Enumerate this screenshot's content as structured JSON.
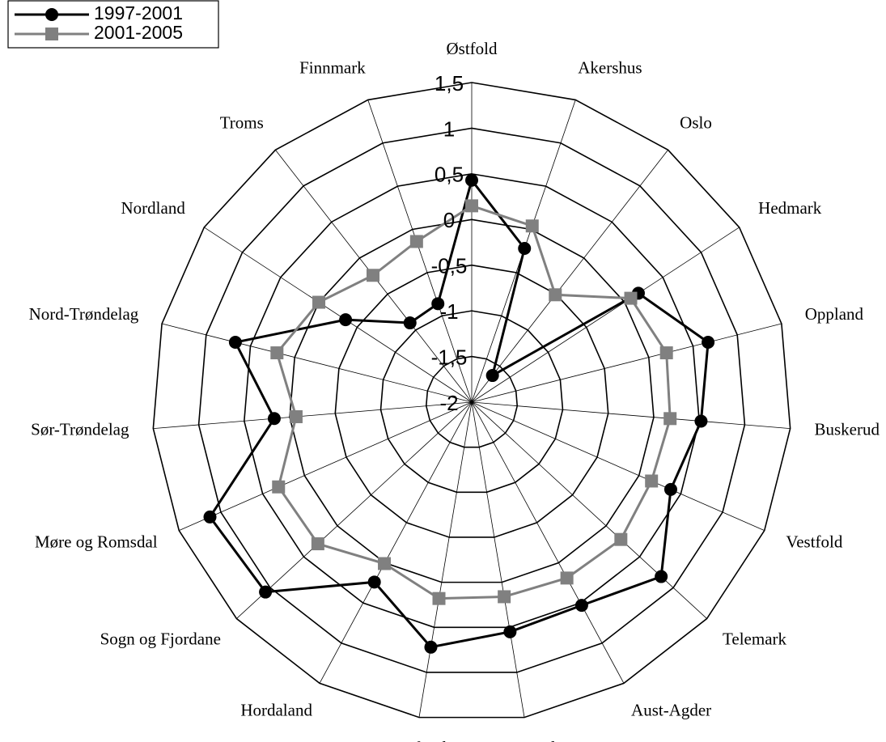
{
  "chart_data": {
    "type": "radar",
    "categories": [
      "Østfold",
      "Akershus",
      "Oslo",
      "Hedmark",
      "Oppland",
      "Buskerud",
      "Vestfold",
      "Telemark",
      "Aust-Agder",
      "Vest-Agder",
      "Rogaland",
      "Hordaland",
      "Sogn og Fjordane",
      "Møre og Romsdal",
      "Sør-Trøndelag",
      "Nord-Trøndelag",
      "Nordland",
      "Troms",
      "Finnmark"
    ],
    "series": [
      {
        "name": "1997-2001",
        "color": "#000000",
        "marker": "circle",
        "values": [
          0.43,
          -0.22,
          -1.63,
          0.18,
          0.67,
          0.52,
          0.38,
          0.82,
          0.53,
          0.55,
          0.72,
          0.24,
          1.07,
          1.13,
          0.17,
          0.67,
          -0.35,
          -0.9,
          -0.86
        ]
      },
      {
        "name": "2001-2005",
        "color": "#808080",
        "marker": "square",
        "values": [
          0.15,
          0.04,
          -0.51,
          0.08,
          0.2,
          0.18,
          0.15,
          0.22,
          0.19,
          0.16,
          0.18,
          0.01,
          0.29,
          0.31,
          -0.07,
          0.2,
          0.0,
          -0.24,
          -0.14
        ]
      }
    ],
    "ylim": [
      -2,
      1.5
    ],
    "yticks": [
      {
        "value": -2,
        "label": "-2"
      },
      {
        "value": -1.5,
        "label": "-1,5"
      },
      {
        "value": -1,
        "label": "-1"
      },
      {
        "value": -0.5,
        "label": "-0,5"
      },
      {
        "value": 0,
        "label": "0"
      },
      {
        "value": 0.5,
        "label": "0,5"
      },
      {
        "value": 1,
        "label": "1"
      },
      {
        "value": 1.5,
        "label": "1,5"
      }
    ],
    "legend": "top-left"
  }
}
